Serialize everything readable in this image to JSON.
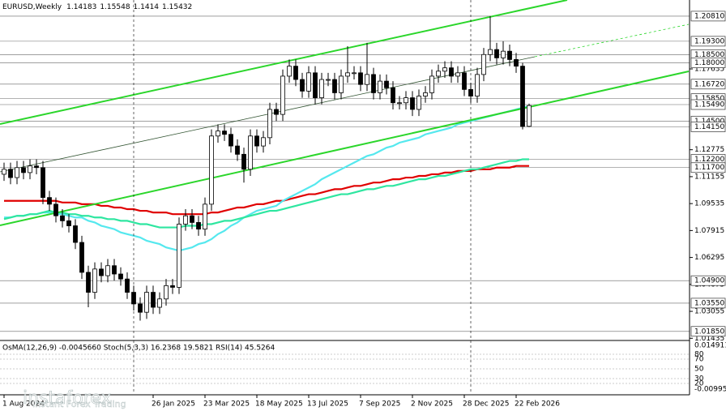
{
  "chart_data": {
    "type": "candlestick",
    "title": "EURUSD,Weekly",
    "categories": [
      "1 Aug 2024",
      null,
      null,
      null,
      null,
      null,
      null,
      null,
      null,
      null,
      null,
      null,
      null,
      null,
      null,
      null,
      null,
      null,
      null,
      null,
      null,
      null,
      null,
      "26 Jan 2025",
      null,
      null,
      null,
      null,
      null,
      null,
      null,
      "23 Mar 2025",
      null,
      null,
      null,
      null,
      null,
      null,
      null,
      "18 May 2025",
      null,
      null,
      null,
      null,
      null,
      null,
      null,
      "13 Jul 2025",
      null,
      null,
      null,
      null,
      null,
      null,
      null,
      "7 Sep 2025",
      null,
      null,
      null,
      null,
      null,
      null,
      null,
      "2 Nov 2025",
      null,
      null,
      null,
      null,
      null,
      null,
      null,
      "28 Dec 2025",
      null,
      null,
      null,
      null,
      null,
      null,
      null,
      "22 Feb 2026",
      null,
      null
    ],
    "candles": [
      [
        1.113,
        1.12,
        1.109,
        1.116
      ],
      [
        1.116,
        1.12,
        1.107,
        1.111
      ],
      [
        1.111,
        1.121,
        1.107,
        1.117
      ],
      [
        1.117,
        1.121,
        1.11,
        1.114
      ],
      [
        1.114,
        1.122,
        1.11,
        1.118
      ],
      [
        1.118,
        1.122,
        1.113,
        1.117
      ],
      [
        1.117,
        1.121,
        1.095,
        1.099
      ],
      [
        1.099,
        1.103,
        1.091,
        1.095
      ],
      [
        1.095,
        1.099,
        1.084,
        1.088
      ],
      [
        1.088,
        1.092,
        1.081,
        1.085
      ],
      [
        1.085,
        1.089,
        1.078,
        1.082
      ],
      [
        1.082,
        1.086,
        1.068,
        1.072
      ],
      [
        1.072,
        1.076,
        1.05,
        1.054
      ],
      [
        1.054,
        1.058,
        1.033,
        1.042
      ],
      [
        1.042,
        1.06,
        1.038,
        1.056
      ],
      [
        1.056,
        1.06,
        1.048,
        1.052
      ],
      [
        1.052,
        1.062,
        1.048,
        1.058
      ],
      [
        1.058,
        1.062,
        1.049,
        1.053
      ],
      [
        1.053,
        1.057,
        1.046,
        1.05
      ],
      [
        1.05,
        1.054,
        1.038,
        1.042
      ],
      [
        1.042,
        1.046,
        1.031,
        1.035
      ],
      [
        1.035,
        1.039,
        1.025,
        1.03
      ],
      [
        1.03,
        1.046,
        1.026,
        1.042
      ],
      [
        1.042,
        1.046,
        1.029,
        1.033
      ],
      [
        1.033,
        1.042,
        1.029,
        1.038
      ],
      [
        1.038,
        1.05,
        1.034,
        1.046
      ],
      [
        1.046,
        1.05,
        1.041,
        1.045
      ],
      [
        1.045,
        1.087,
        1.041,
        1.083
      ],
      [
        1.083,
        1.092,
        1.079,
        1.088
      ],
      [
        1.088,
        1.092,
        1.08,
        1.084
      ],
      [
        1.084,
        1.088,
        1.076,
        1.08
      ],
      [
        1.08,
        1.099,
        1.076,
        1.095
      ],
      [
        1.095,
        1.14,
        1.091,
        1.136
      ],
      [
        1.136,
        1.143,
        1.132,
        1.139
      ],
      [
        1.139,
        1.143,
        1.133,
        1.137
      ],
      [
        1.137,
        1.141,
        1.126,
        1.13
      ],
      [
        1.13,
        1.134,
        1.121,
        1.125
      ],
      [
        1.125,
        1.129,
        1.108,
        1.116
      ],
      [
        1.116,
        1.14,
        1.112,
        1.136
      ],
      [
        1.136,
        1.14,
        1.126,
        1.13
      ],
      [
        1.13,
        1.139,
        1.126,
        1.135
      ],
      [
        1.135,
        1.156,
        1.131,
        1.152
      ],
      [
        1.152,
        1.156,
        1.145,
        1.149
      ],
      [
        1.149,
        1.176,
        1.145,
        1.172
      ],
      [
        1.172,
        1.182,
        1.168,
        1.178
      ],
      [
        1.178,
        1.182,
        1.166,
        1.17
      ],
      [
        1.17,
        1.174,
        1.159,
        1.163
      ],
      [
        1.163,
        1.178,
        1.159,
        1.174
      ],
      [
        1.174,
        1.178,
        1.155,
        1.159
      ],
      [
        1.159,
        1.174,
        1.155,
        1.17
      ],
      [
        1.17,
        1.174,
        1.166,
        1.17
      ],
      [
        1.17,
        1.174,
        1.158,
        1.162
      ],
      [
        1.162,
        1.176,
        1.158,
        1.172
      ],
      [
        1.172,
        1.19,
        1.168,
        1.174
      ],
      [
        1.174,
        1.178,
        1.17,
        1.174
      ],
      [
        1.174,
        1.178,
        1.163,
        1.167
      ],
      [
        1.167,
        1.192,
        1.163,
        1.173
      ],
      [
        1.173,
        1.177,
        1.158,
        1.162
      ],
      [
        1.162,
        1.173,
        1.158,
        1.169
      ],
      [
        1.169,
        1.173,
        1.161,
        1.165
      ],
      [
        1.165,
        1.169,
        1.152,
        1.156
      ],
      [
        1.156,
        1.16,
        1.152,
        1.156
      ],
      [
        1.156,
        1.163,
        1.152,
        1.159
      ],
      [
        1.159,
        1.163,
        1.148,
        1.152
      ],
      [
        1.152,
        1.164,
        1.148,
        1.16
      ],
      [
        1.16,
        1.166,
        1.156,
        1.162
      ],
      [
        1.162,
        1.176,
        1.158,
        1.172
      ],
      [
        1.172,
        1.179,
        1.168,
        1.175
      ],
      [
        1.175,
        1.181,
        1.171,
        1.177
      ],
      [
        1.177,
        1.181,
        1.168,
        1.172
      ],
      [
        1.172,
        1.178,
        1.168,
        1.174
      ],
      [
        1.174,
        1.178,
        1.16,
        1.164
      ],
      [
        1.164,
        1.168,
        1.156,
        1.16
      ],
      [
        1.16,
        1.177,
        1.156,
        1.173
      ],
      [
        1.173,
        1.189,
        1.169,
        1.185
      ],
      [
        1.185,
        1.2081,
        1.181,
        1.188
      ],
      [
        1.188,
        1.192,
        1.179,
        1.183
      ],
      [
        1.183,
        1.193,
        1.179,
        1.187
      ],
      [
        1.187,
        1.191,
        1.178,
        1.182
      ],
      [
        1.182,
        1.186,
        1.174,
        1.178
      ],
      [
        1.178,
        1.18,
        1.14,
        1.1418
      ],
      [
        1.14183,
        1.15548,
        1.1414,
        1.15432
      ]
    ],
    "series": [
      {
        "color": "#e00000",
        "values": [
          1.097,
          1.097,
          1.097,
          1.097,
          1.097,
          1.097,
          1.097,
          1.097,
          1.097,
          1.096,
          1.096,
          1.096,
          1.095,
          1.095,
          1.095,
          1.094,
          1.094,
          1.093,
          1.093,
          1.092,
          1.092,
          1.091,
          1.091,
          1.09,
          1.09,
          1.09,
          1.089,
          1.089,
          1.089,
          1.089,
          1.089,
          1.089,
          1.09,
          1.09,
          1.091,
          1.092,
          1.093,
          1.093,
          1.094,
          1.095,
          1.095,
          1.096,
          1.097,
          1.097,
          1.098,
          1.099,
          1.1,
          1.101,
          1.101,
          1.102,
          1.103,
          1.104,
          1.104,
          1.105,
          1.106,
          1.106,
          1.107,
          1.108,
          1.108,
          1.109,
          1.11,
          1.11,
          1.111,
          1.111,
          1.112,
          1.112,
          1.113,
          1.113,
          1.114,
          1.114,
          1.115,
          1.115,
          1.115,
          1.116,
          1.116,
          1.116,
          1.117,
          1.117,
          1.117,
          1.118,
          1.118,
          1.118
        ]
      },
      {
        "color": "#55e8ee",
        "values": [
          1.087,
          1.087,
          1.088,
          1.088,
          1.089,
          1.089,
          1.09,
          1.09,
          1.089,
          1.089,
          1.088,
          1.087,
          1.087,
          1.085,
          1.084,
          1.082,
          1.081,
          1.08,
          1.078,
          1.077,
          1.076,
          1.075,
          1.073,
          1.072,
          1.071,
          1.069,
          1.068,
          1.067,
          1.068,
          1.069,
          1.071,
          1.072,
          1.074,
          1.077,
          1.079,
          1.082,
          1.084,
          1.087,
          1.089,
          1.091,
          1.092,
          1.093,
          1.094,
          1.097,
          1.099,
          1.101,
          1.103,
          1.105,
          1.107,
          1.11,
          1.112,
          1.114,
          1.116,
          1.118,
          1.12,
          1.122,
          1.124,
          1.125,
          1.127,
          1.129,
          1.13,
          1.132,
          1.133,
          1.134,
          1.135,
          1.137,
          1.138,
          1.139,
          1.14,
          1.141,
          1.143,
          1.144,
          1.145,
          1.146,
          1.147,
          1.148,
          1.149,
          1.15,
          1.151,
          1.152,
          1.153,
          1.154
        ]
      },
      {
        "color": "#2ee6a0",
        "values": [
          1.086,
          1.087,
          1.088,
          1.088,
          1.089,
          1.089,
          1.09,
          1.091,
          1.09,
          1.09,
          1.089,
          1.089,
          1.088,
          1.088,
          1.087,
          1.087,
          1.086,
          1.086,
          1.085,
          1.085,
          1.084,
          1.083,
          1.083,
          1.082,
          1.081,
          1.081,
          1.081,
          1.081,
          1.082,
          1.082,
          1.082,
          1.083,
          1.083,
          1.084,
          1.085,
          1.085,
          1.086,
          1.087,
          1.088,
          1.089,
          1.09,
          1.091,
          1.091,
          1.092,
          1.093,
          1.094,
          1.095,
          1.096,
          1.097,
          1.098,
          1.099,
          1.1,
          1.101,
          1.101,
          1.102,
          1.103,
          1.104,
          1.104,
          1.105,
          1.106,
          1.106,
          1.107,
          1.108,
          1.109,
          1.11,
          1.11,
          1.111,
          1.112,
          1.112,
          1.113,
          1.114,
          1.115,
          1.116,
          1.116,
          1.117,
          1.118,
          1.119,
          1.12,
          1.121,
          1.121,
          1.122,
          1.122
        ]
      }
    ],
    "bull_color": "#ffffff",
    "bear_color": "#000000",
    "ylim": [
      1.014,
      1.2178
    ],
    "yticks": [
      {
        "value": 1.01435,
        "label": "1.01435"
      },
      {
        "value": 1.03055,
        "label": "1.03055"
      },
      {
        "value": 1.04675,
        "label": "1.04675"
      },
      {
        "value": 1.06295,
        "label": "1.06295"
      },
      {
        "value": 1.07915,
        "label": "1.07915"
      },
      {
        "value": 1.09535,
        "label": "1.09535"
      },
      {
        "value": 1.11155,
        "label": "1.11155"
      },
      {
        "value": 1.12775,
        "label": "1.12775"
      },
      {
        "value": 1.17635,
        "label": "1.17635"
      }
    ],
    "levels": [
      {
        "value": 1.2081,
        "label": "1.20810"
      },
      {
        "value": 1.193,
        "label": "1.19300"
      },
      {
        "value": 1.185,
        "label": "1.18500"
      },
      {
        "value": 1.18,
        "label": "1.18000"
      },
      {
        "value": 1.1672,
        "label": "1.16720"
      },
      {
        "value": 1.1585,
        "label": "1.15850"
      },
      {
        "value": 1.1549,
        "label": "1.15490"
      },
      {
        "value": 1.145,
        "label": "1.14500"
      },
      {
        "value": 1.1415,
        "label": "1.14150"
      },
      {
        "value": 1.122,
        "label": "1.12200"
      },
      {
        "value": 1.117,
        "label": "1.11700"
      },
      {
        "value": 1.049,
        "label": "1.04900"
      },
      {
        "value": 1.0355,
        "label": "1.03550"
      },
      {
        "value": 1.0185,
        "label": "1.01850"
      }
    ],
    "indicator_title": "OsMA(12,26,9) -0.0045660  Stoch(5,3,3) 16.2368 19.5821  RSI(14) 45.5264",
    "indicator_ylim": [
      0,
      100
    ],
    "indicator_yticks": [
      80,
      70,
      50,
      30,
      20
    ],
    "indicator_scale_labels": [
      "0.014911",
      "-0.009951"
    ],
    "watermark": {
      "brand": "instaforex",
      "slogan": "Instant Forex Trading"
    }
  }
}
